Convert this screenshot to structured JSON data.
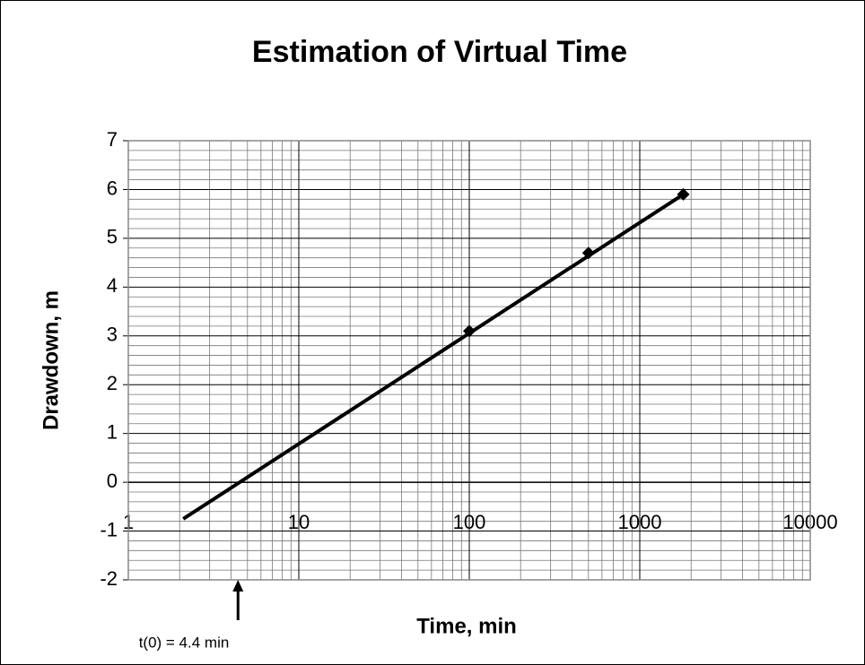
{
  "chart_data": {
    "type": "scatter",
    "title": "Estimation of Virtual Time",
    "x_label": "Time, min",
    "y_label": "Drawdown, m",
    "x_scale": "log",
    "xlim": [
      1,
      10000
    ],
    "ylim": [
      -2,
      7
    ],
    "xticks": [
      1,
      10,
      100,
      1000,
      10000
    ],
    "yticks": [
      -2,
      -1,
      0,
      1,
      2,
      3,
      4,
      5,
      6,
      7
    ],
    "xminorticks": [
      2,
      3,
      4,
      5,
      6,
      7,
      8,
      9,
      20,
      30,
      40,
      50,
      60,
      70,
      80,
      90,
      200,
      300,
      400,
      500,
      600,
      700,
      800,
      900,
      2000,
      3000,
      4000,
      5000,
      6000,
      7000,
      8000,
      9000
    ],
    "yminorticks": [
      -1.8,
      -1.6,
      -1.4,
      -1.2,
      -0.8,
      -0.6,
      -0.4,
      -0.2,
      0.2,
      0.4,
      0.6,
      0.8,
      1.2,
      1.4,
      1.6,
      1.8,
      2.2,
      2.4,
      2.6,
      2.8,
      3.2,
      3.4,
      3.6,
      3.8,
      4.2,
      4.4,
      4.6,
      4.8,
      5.2,
      5.4,
      5.6,
      5.8,
      6.2,
      6.4,
      6.6,
      6.8
    ],
    "grid": true,
    "series": [
      {
        "x": [
          100,
          500,
          1800
        ],
        "values": [
          3.1,
          4.7,
          5.9
        ],
        "color": "#000000",
        "marker": "diamond"
      },
      {
        "x": [
          2.1,
          1800
        ],
        "values": [
          -0.75,
          5.9
        ],
        "color": "#000000",
        "line": true
      }
    ],
    "annotation": {
      "text": "t(0) = 4.4 min",
      "x": 4.4
    }
  }
}
